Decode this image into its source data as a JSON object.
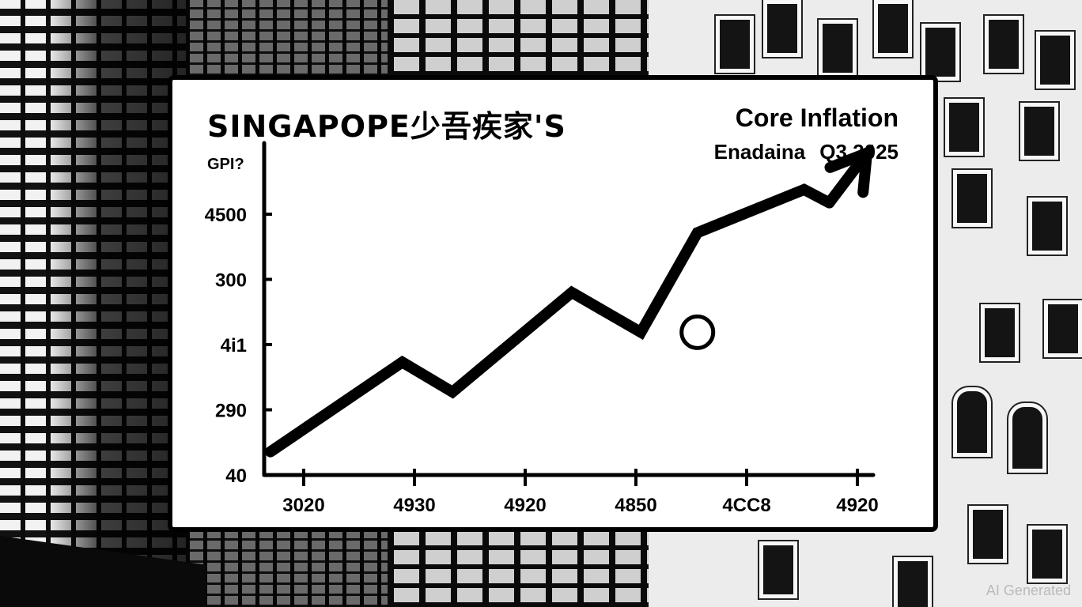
{
  "header": {
    "brand": "SINGAPOPE少吾疾家'S",
    "title": "Core Inflation",
    "subtitle_left": "Enadaina",
    "subtitle_right": "Q3 2025"
  },
  "chart_data": {
    "type": "line",
    "title": "Core Inflation",
    "ylabel": "GPI?",
    "y_ticks": [
      "4500",
      "300",
      "4i1",
      "290",
      "40"
    ],
    "x_ticks": [
      "3020",
      "4930",
      "4920",
      "4850",
      "4CC8",
      "4920"
    ],
    "series": [
      {
        "points": [
          {
            "x": 0.0,
            "y": 1.0
          },
          {
            "x": 1.05,
            "y": 2.35
          },
          {
            "x": 1.45,
            "y": 1.9
          },
          {
            "x": 2.4,
            "y": 3.4
          },
          {
            "x": 2.95,
            "y": 2.8
          },
          {
            "x": 3.4,
            "y": 4.3
          },
          {
            "x": 4.25,
            "y": 4.95
          },
          {
            "x": 4.45,
            "y": 4.75
          },
          {
            "x": 4.75,
            "y": 5.5
          }
        ],
        "arrow_end": true,
        "color": "#000000"
      }
    ],
    "annotations": [
      {
        "type": "circle-marker",
        "x": 3.4,
        "y": 2.8
      }
    ],
    "xlim": [
      -0.05,
      4.8
    ],
    "ylim": [
      0.65,
      5.65
    ],
    "grid": false
  },
  "watermark": "AI Generated"
}
